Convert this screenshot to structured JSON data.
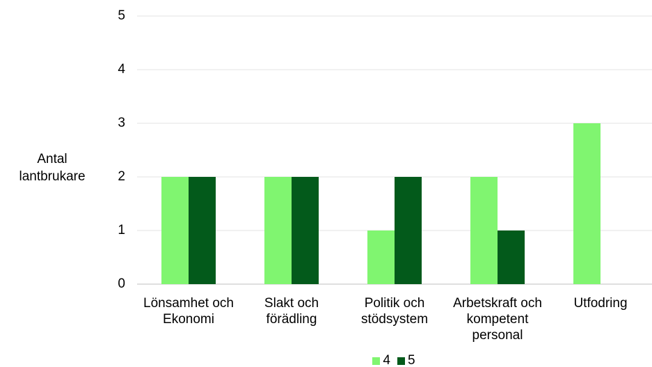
{
  "chart_data": {
    "type": "bar",
    "y_label": "Antal lantbrukare",
    "categories": [
      "Lönsamhet och Ekonomi",
      "Slakt och förädling",
      "Politik och stödsystem",
      "Arbetskraft och kompetent personal",
      "Utfodring"
    ],
    "series": [
      {
        "name": "4",
        "color": "#80f570",
        "values": [
          2,
          2,
          1,
          2,
          3
        ]
      },
      {
        "name": "5",
        "color": "#035a1b",
        "values": [
          2,
          2,
          2,
          1,
          0
        ]
      }
    ],
    "ylim": [
      0,
      5
    ],
    "yticks": [
      0,
      1,
      2,
      3,
      4,
      5
    ],
    "grid": true,
    "legend": "bottom"
  }
}
